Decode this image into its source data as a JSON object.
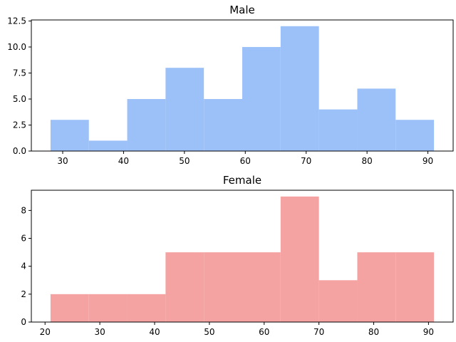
{
  "chart_data": [
    {
      "type": "bar",
      "title": "Male",
      "xlabel": "",
      "ylabel": "",
      "color": "#9cc0f8",
      "bin_edges": [
        28,
        34.3,
        40.6,
        46.9,
        53.2,
        59.5,
        65.8,
        72.1,
        78.4,
        84.7,
        91
      ],
      "values": [
        3,
        1,
        5,
        8,
        5,
        10,
        12,
        4,
        6,
        3
      ],
      "xlim": [
        24.85,
        94.15
      ],
      "ylim": [
        0,
        12.6
      ],
      "xticks": [
        30,
        40,
        50,
        60,
        70,
        80,
        90
      ],
      "yticks": [
        0,
        2.5,
        5,
        7.5,
        10,
        12.5
      ],
      "ytick_labels": [
        "0.0",
        "2.5",
        "5.0",
        "7.5",
        "10.0",
        "12.5"
      ],
      "grid": false
    },
    {
      "type": "bar",
      "title": "Female",
      "xlabel": "",
      "ylabel": "",
      "color": "#f4a3a2",
      "bin_edges": [
        21,
        28,
        35,
        42,
        49,
        56,
        63,
        70,
        77,
        84,
        91
      ],
      "values": [
        2,
        2,
        2,
        5,
        5,
        5,
        9,
        3,
        5,
        5
      ],
      "xlim": [
        17.5,
        94.5
      ],
      "ylim": [
        0,
        9.45
      ],
      "xticks": [
        20,
        30,
        40,
        50,
        60,
        70,
        80,
        90
      ],
      "yticks": [
        0,
        2,
        4,
        6,
        8
      ],
      "ytick_labels": [
        "0",
        "2",
        "4",
        "6",
        "8"
      ],
      "grid": false
    }
  ]
}
